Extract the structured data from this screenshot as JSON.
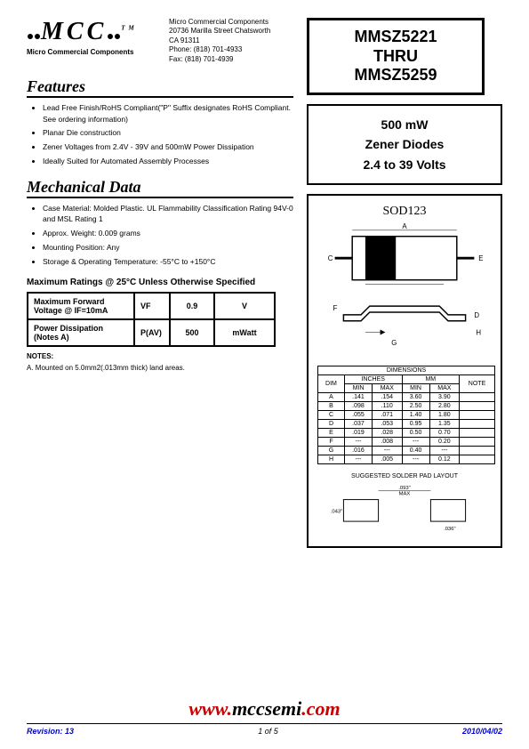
{
  "logo": {
    "text": "MCC",
    "subtitle": "Micro Commercial Components",
    "tm": "TM"
  },
  "company": {
    "name": "Micro Commercial Components",
    "addr1": "20736 Marilla Street Chatsworth",
    "addr2": "CA 91311",
    "phone": "Phone: (818) 701-4933",
    "fax": "Fax:      (818) 701-4939"
  },
  "title": {
    "line1": "MMSZ5221",
    "line2": "THRU",
    "line3": "MMSZ5259"
  },
  "subbox": {
    "line1": "500 mW",
    "line2": "Zener Diodes",
    "line3": "2.4 to 39 Volts"
  },
  "features": {
    "heading": "Features",
    "items": [
      "Lead Free Finish/RoHS Compliant(\"P\" Suffix designates RoHS Compliant.  See ordering information)",
      "Planar Die construction",
      "Zener Voltages from 2.4V - 39V and 500mW Power Dissipation",
      "Ideally Suited for Automated Assembly Processes"
    ]
  },
  "mechanical": {
    "heading": "Mechanical Data",
    "items": [
      "Case Material: Molded Plastic. UL Flammability Classification Rating 94V-0 and MSL Rating 1",
      "Approx. Weight: 0.009 grams",
      "Mounting Position: Any",
      "Storage & Operating Temperature: -55°C to +150°C"
    ]
  },
  "ratings": {
    "heading": "Maximum Ratings @ 25°C Unless Otherwise Specified",
    "rows": [
      {
        "label": "Maximum Forward Voltage @ IF=10mA",
        "sym": "VF",
        "val": "0.9",
        "unit": "V"
      },
      {
        "label": "Power Dissipation (Notes  A)",
        "sym": "P(AV)",
        "val": "500",
        "unit": "mWatt"
      }
    ],
    "notes_title": "NOTES:",
    "note_a": "A. Mounted on 5.0mm2(.013mm thick) land areas."
  },
  "package": {
    "title": "SOD123",
    "dim_header": "DIMENSIONS",
    "cols": [
      "DIM",
      "INCHES",
      "MM",
      "NOTE"
    ],
    "subcols": [
      "MIN",
      "MAX",
      "MIN",
      "MAX"
    ],
    "rows": [
      [
        "A",
        ".141",
        ".154",
        "3.60",
        "3.90",
        ""
      ],
      [
        "B",
        ".098",
        ".110",
        "2.50",
        "2.80",
        ""
      ],
      [
        "C",
        ".055",
        ".071",
        "1.40",
        "1.80",
        ""
      ],
      [
        "D",
        ".037",
        ".053",
        "0.95",
        "1.35",
        ""
      ],
      [
        "E",
        ".019",
        ".028",
        "0.50",
        "0.70",
        ""
      ],
      [
        "F",
        "---",
        ".008",
        "---",
        "0.20",
        ""
      ],
      [
        "G",
        ".016",
        "---",
        "0.40",
        "---",
        ""
      ],
      [
        "H",
        "---",
        ".005",
        "---",
        "0.12",
        ""
      ]
    ]
  },
  "layout": {
    "title": "SUGGESTED SOLDER PAD LAYOUT",
    "dim1": ".093\" MAX",
    "dim2": ".043\"",
    "dim3": ".036\""
  },
  "footer": {
    "website": "www.mccsemi.com",
    "revision": "Revision: 13",
    "page": "1 of 5",
    "date": "2010/04/02"
  },
  "colors": {
    "red": "#cc0000",
    "blue": "#0000cc"
  }
}
